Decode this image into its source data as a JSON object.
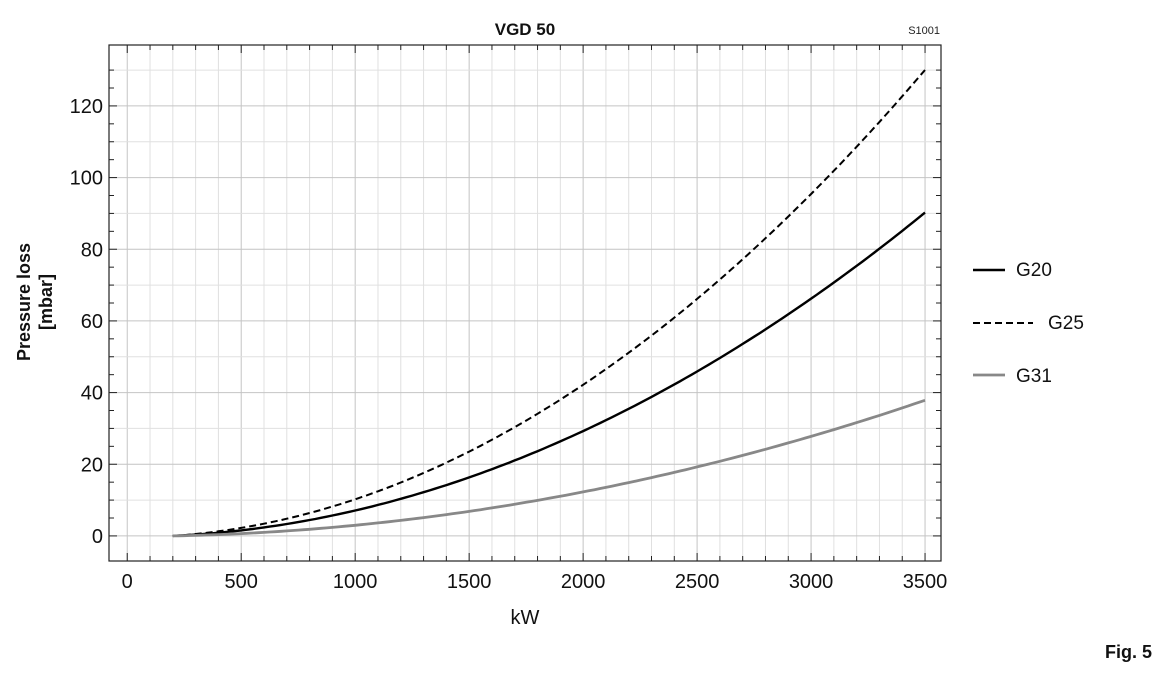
{
  "figure_label": "Fig. 5",
  "chart_data": {
    "type": "line",
    "title": "VGD 50",
    "code": "S1001",
    "xlabel": "kW",
    "ylabel": [
      "Pressure loss",
      "[mbar]"
    ],
    "xlim": [
      -80,
      3570
    ],
    "ylim": [
      -7,
      137
    ],
    "xticks": [
      0,
      500,
      1000,
      1500,
      2000,
      2500,
      3000,
      3500
    ],
    "yticks": [
      0,
      20,
      40,
      60,
      80,
      100,
      120
    ],
    "grid": true,
    "legend_position": "right",
    "series": [
      {
        "name": "G20",
        "style": "solid",
        "color": "#000000",
        "coef": 7.39e-06,
        "x": [
          200,
          500,
          1000,
          1500,
          2000,
          2500,
          3000,
          3500
        ],
        "y": [
          0,
          1.8,
          7.4,
          16.6,
          29.6,
          46.2,
          66.5,
          90.5
        ]
      },
      {
        "name": "G25",
        "style": "dashed",
        "color": "#000000",
        "coef": 1.065e-05,
        "x": [
          200,
          500,
          1000,
          1500,
          2000,
          2500,
          3000,
          3500
        ],
        "y": [
          0,
          2.7,
          10.7,
          24.0,
          42.6,
          66.6,
          95.9,
          130.5
        ]
      },
      {
        "name": "G31",
        "style": "solid",
        "color": "#888888",
        "coef": 3.1e-06,
        "x": [
          200,
          500,
          1000,
          1500,
          2000,
          2500,
          3000,
          3500
        ],
        "y": [
          0,
          0.8,
          3.1,
          7.0,
          12.4,
          19.4,
          27.9,
          38.0
        ]
      }
    ]
  }
}
